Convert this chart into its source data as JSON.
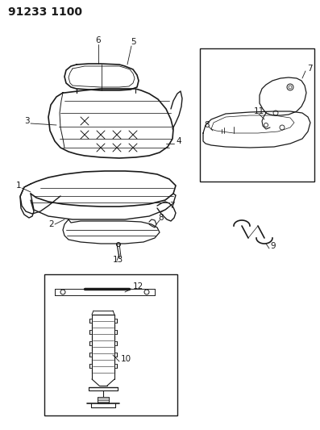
{
  "title_code": "91233 1100",
  "bg_color": "#ffffff",
  "line_color": "#1a1a1a",
  "title_fontsize": 10,
  "label_fontsize": 7.5,
  "fig_width": 3.97,
  "fig_height": 5.33,
  "dpi": 100
}
